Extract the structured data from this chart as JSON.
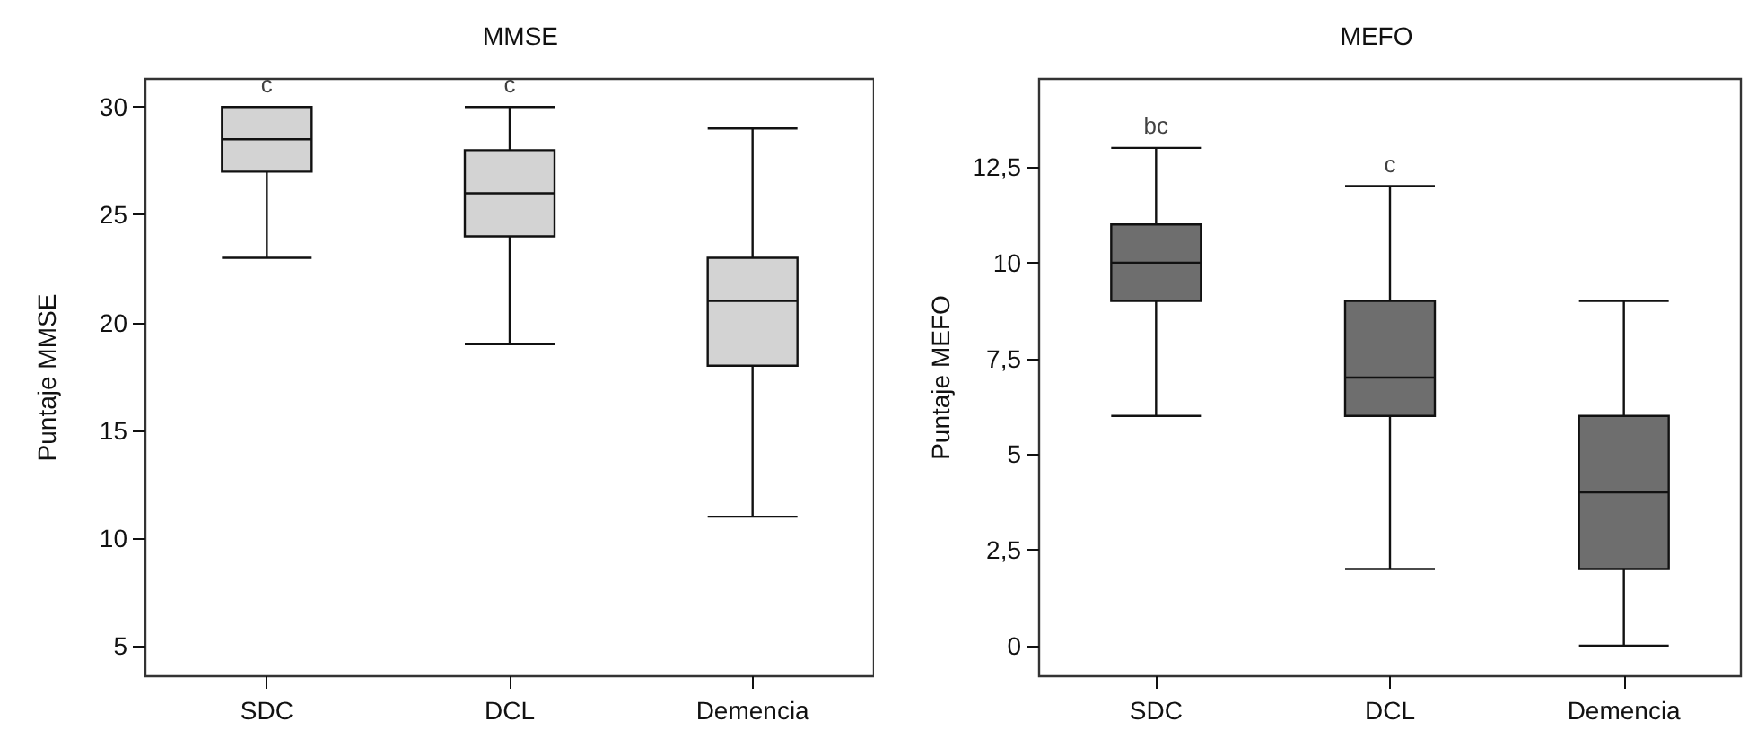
{
  "chart_data": [
    {
      "type": "box",
      "title": "MMSE",
      "ylabel": "Puntaje MMSE",
      "categories": [
        "SDC",
        "DCL",
        "Demencia"
      ],
      "color": "#d3d3d3",
      "boxes": [
        {
          "low": 23,
          "q1": 27,
          "median": 28.5,
          "q3": 30,
          "high": 30
        },
        {
          "low": 19,
          "q1": 24,
          "median": 26,
          "q3": 28,
          "high": 30
        },
        {
          "low": 11,
          "q1": 18,
          "median": 21,
          "q3": 23,
          "high": 29
        }
      ],
      "ylim": [
        3.6,
        31.3
      ],
      "yticks": [
        5,
        10,
        15,
        20,
        25,
        30
      ],
      "grid": false,
      "annotations": [
        "c",
        "c"
      ]
    },
    {
      "type": "box",
      "title": "MEFO",
      "ylabel": "Puntaje MEFO",
      "categories": [
        "SDC",
        "DCL",
        "Demencia"
      ],
      "color": "#6e6e6e",
      "boxes": [
        {
          "low": 6,
          "q1": 9,
          "median": 10,
          "q3": 11,
          "high": 13
        },
        {
          "low": 2,
          "q1": 6,
          "median": 7,
          "q3": 9,
          "high": 12
        },
        {
          "low": 0,
          "q1": 2,
          "median": 4,
          "q3": 6,
          "high": 9
        }
      ],
      "ylim": [
        -0.8,
        14.8
      ],
      "yticks": [
        {
          "value": 0,
          "label": "0"
        },
        {
          "value": 2.5,
          "label": "2,5"
        },
        {
          "value": 5,
          "label": "5"
        },
        {
          "value": 7.5,
          "label": "7,5"
        },
        {
          "value": 10,
          "label": "10"
        },
        {
          "value": 12.5,
          "label": "12,5"
        }
      ],
      "grid": false,
      "annotations": [
        "bc",
        "c"
      ]
    }
  ]
}
